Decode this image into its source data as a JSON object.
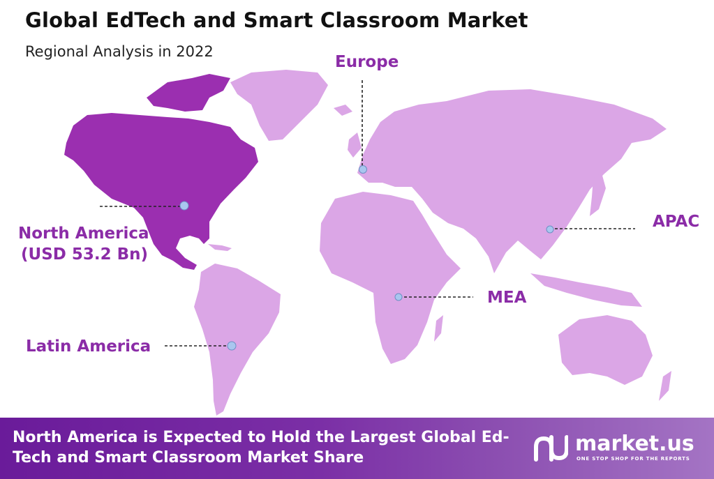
{
  "title": "Global EdTech and Smart Classroom Market",
  "subtitle": "Regional Analysis in 2022",
  "colors": {
    "highlight_region": "#9b2fb0",
    "other_regions": "#dba6e6",
    "label": "#8b2ca7",
    "marker": "#a9c6ef"
  },
  "regions": [
    {
      "name": "North America",
      "value_label": "(USD 53.2 Bn)",
      "highlighted": true
    },
    {
      "name": "Europe",
      "value_label": "",
      "highlighted": false
    },
    {
      "name": "APAC",
      "value_label": "",
      "highlighted": false
    },
    {
      "name": "MEA",
      "value_label": "",
      "highlighted": false
    },
    {
      "name": "Latin America",
      "value_label": "",
      "highlighted": false
    }
  ],
  "footer": {
    "text": "North America is Expected to Hold the Largest Global Ed-Tech and Smart Classroom Market Share",
    "brand_name": "market.us",
    "brand_tagline": "ONE STOP SHOP FOR THE REPORTS",
    "brand_icon": "market-us-logo-icon"
  }
}
